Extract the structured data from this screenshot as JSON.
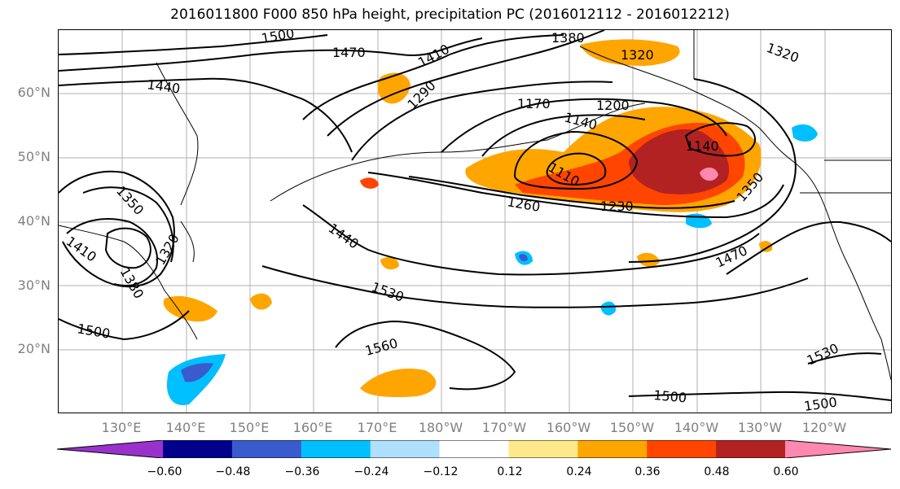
{
  "title": "2016011800 F000 850 hPa height, precipitation PC (2016012112 - 2016012212)",
  "lat_labels": [
    "60°N",
    "50°N",
    "40°N",
    "30°N",
    "20°N"
  ],
  "lon_labels": [
    "130°E",
    "140°E",
    "150°E",
    "160°E",
    "170°E",
    "180°W",
    "170°W",
    "160°W",
    "150°W",
    "140°W",
    "130°W",
    "120°W"
  ],
  "contour_labels": [
    "1500",
    "1470",
    "1440",
    "1410",
    "1380",
    "1320",
    "1320",
    "1290",
    "1200",
    "1170",
    "1140",
    "1140",
    "1110",
    "1260",
    "1230",
    "1350",
    "1350",
    "1410",
    "1380",
    "1320",
    "1440",
    "1470",
    "1530",
    "1500",
    "1560",
    "1530",
    "1500",
    "1500"
  ],
  "colorbar": {
    "ticks": [
      "−0.60",
      "−0.48",
      "−0.36",
      "−0.24",
      "−0.12",
      "0.12",
      "0.24",
      "0.36",
      "0.48",
      "0.60"
    ],
    "colors": [
      "#9932CC",
      "#00008B",
      "#3A5BCD",
      "#00BFFF",
      "#B0E0FF",
      "#FFFFFF",
      "#FFE98A",
      "#FFA500",
      "#FF4500",
      "#B22222",
      "#FF88B0"
    ]
  }
}
